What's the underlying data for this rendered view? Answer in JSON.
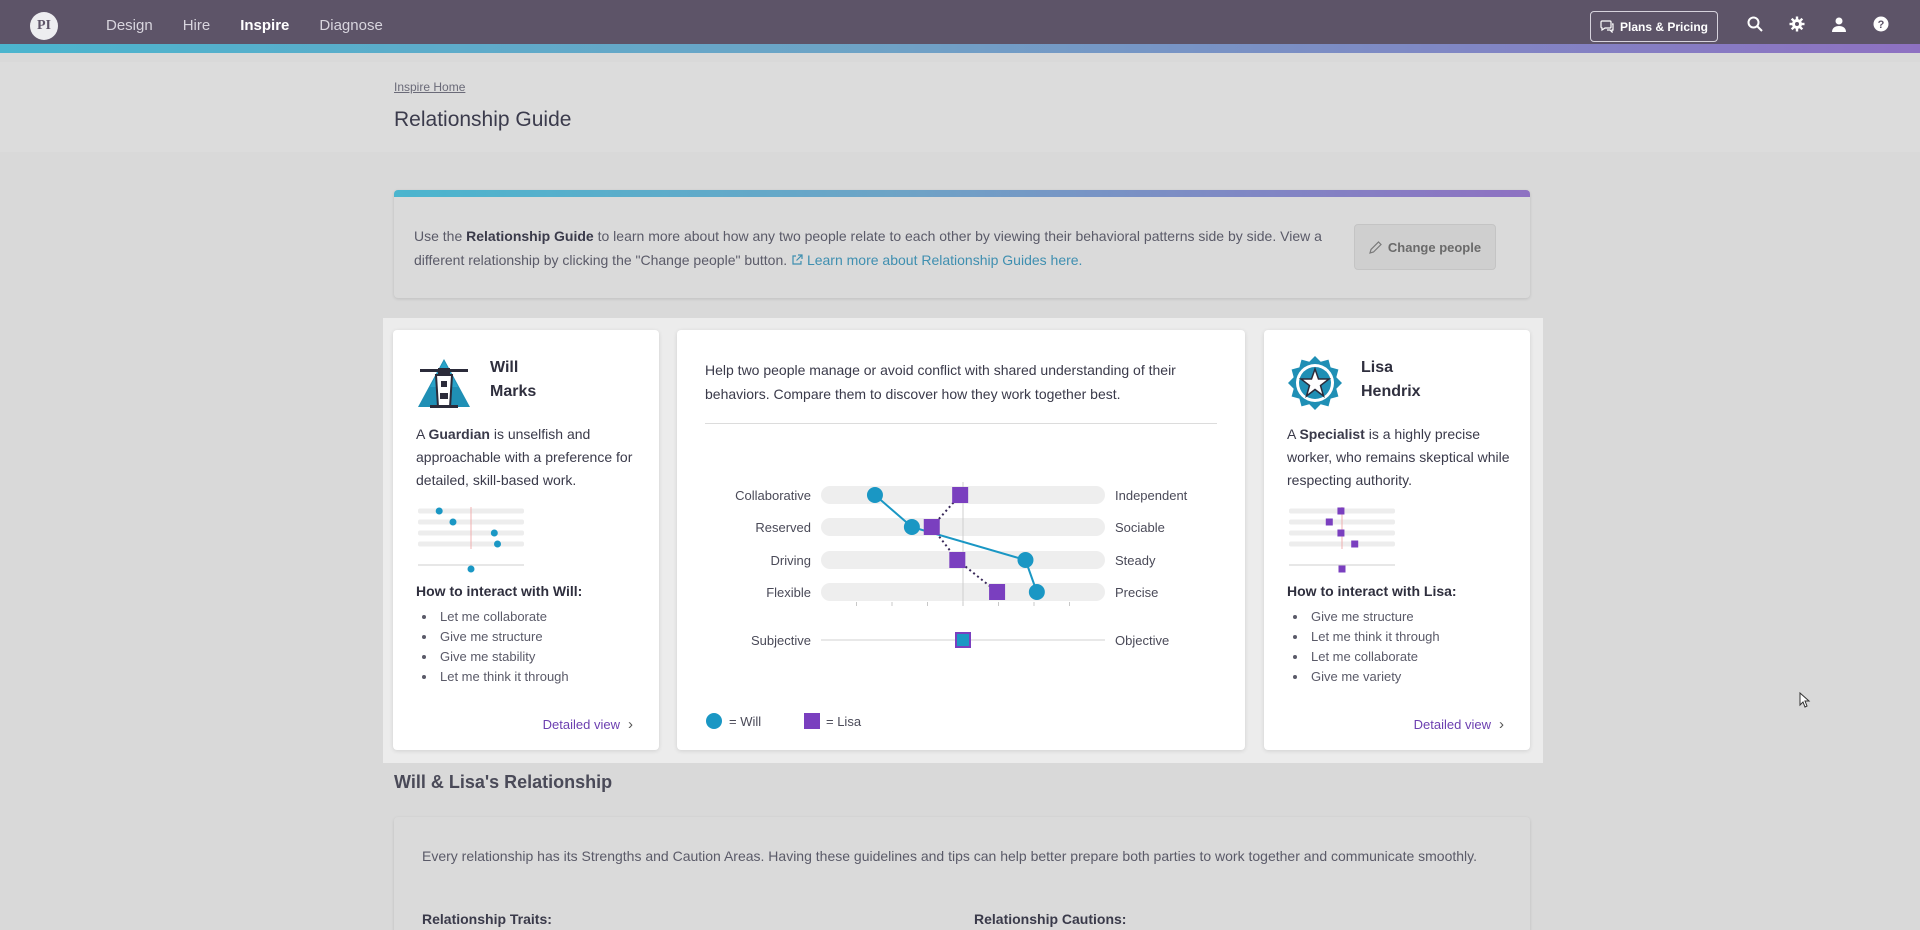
{
  "app": {
    "logo": "PI"
  },
  "nav": {
    "items": [
      "Design",
      "Hire",
      "Inspire",
      "Diagnose"
    ],
    "active": "Inspire"
  },
  "topbar": {
    "plans_label": "Plans & Pricing"
  },
  "header": {
    "breadcrumb": "Inspire Home",
    "title": "Relationship Guide"
  },
  "banner": {
    "text_1": "Use the ",
    "text_bold": "Relationship Guide",
    "text_2": " to learn more about how any two people relate to each other by viewing their behavioral patterns side by side. View a different relationship by clicking the \"Change people\" button.",
    "link": "Learn more about Relationship Guides here.",
    "change_label": "Change people"
  },
  "people": [
    {
      "first": "Will",
      "last": "Marks",
      "article": "A ",
      "profile": "Guardian",
      "desc": " is unselfish and approachable with a preference for detailed, skill-based work.",
      "interact_title": "How to interact with Will:",
      "tips": [
        "Let me collaborate",
        "Give me structure",
        "Give me stability",
        "Let me think it through"
      ],
      "detail_label": "Detailed view",
      "mini": [
        0.2,
        0.33,
        0.72,
        0.75,
        0.5
      ]
    },
    {
      "first": "Lisa",
      "last": "Hendrix",
      "article": "A ",
      "profile": "Specialist",
      "desc": " is a highly precise worker, who remains skeptical while respecting authority.",
      "interact_title": "How to interact with Lisa:",
      "tips": [
        "Give me structure",
        "Let me think it through",
        "Let me collaborate",
        "Give me variety"
      ],
      "detail_label": "Detailed view",
      "mini": [
        0.49,
        0.38,
        0.49,
        0.62,
        0.5
      ]
    }
  ],
  "compare": {
    "intro": "Help two people manage or avoid conflict with shared understanding of their behaviors. Compare them to discover how they work together best.",
    "factors": [
      {
        "left": "Collaborative",
        "right": "Independent",
        "will": 0.19,
        "lisa": 0.49
      },
      {
        "left": "Reserved",
        "right": "Sociable",
        "will": 0.32,
        "lisa": 0.39
      },
      {
        "left": "Driving",
        "right": "Steady",
        "will": 0.72,
        "lisa": 0.48
      },
      {
        "left": "Flexible",
        "right": "Precise",
        "will": 0.76,
        "lisa": 0.62
      }
    ],
    "subjective": {
      "left": "Subjective",
      "right": "Objective",
      "will": 0.5,
      "lisa": 0.5
    },
    "legend_will": "= Will",
    "legend_lisa": "= Lisa",
    "will_color": "#1a97c4",
    "lisa_color": "#7a3fbf"
  },
  "relationship": {
    "title": "Will & Lisa's Relationship",
    "text": "Every relationship has its Strengths and Caution Areas. Having these guidelines and tips can help better prepare both parties to work together and communicate smoothly.",
    "traits_label": "Relationship Traits:",
    "cautions_label": "Relationship Cautions:"
  }
}
